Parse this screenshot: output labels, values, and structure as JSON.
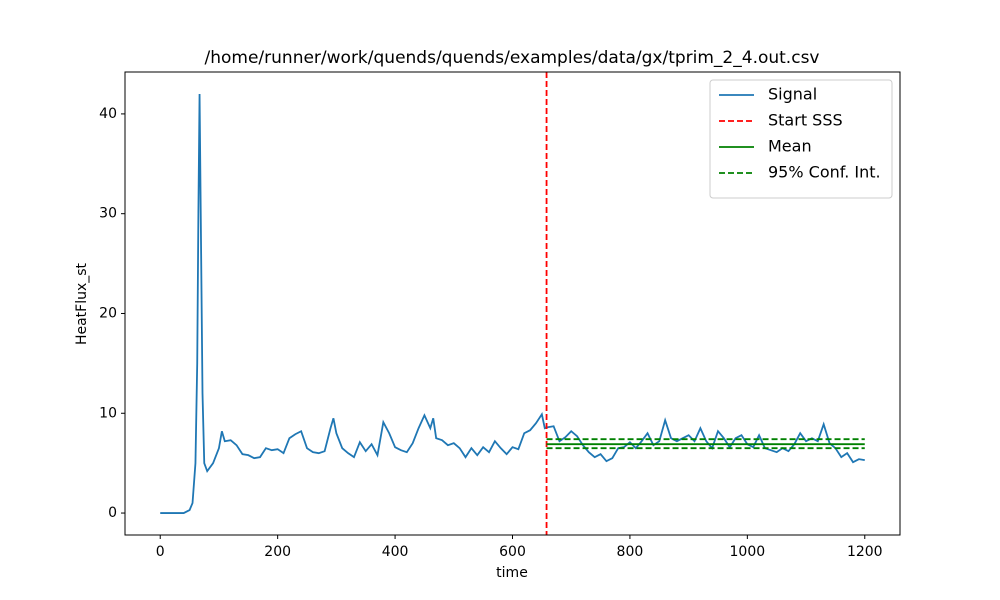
{
  "chart_data": {
    "type": "line",
    "title": "/home/runner/work/quends/quends/examples/data/gx/tprim_2_4.out.csv",
    "x_label": "time",
    "y_label": "HeatFlux_st",
    "xlim": [
      -60,
      1260
    ],
    "ylim": [
      -2.2,
      44.2
    ],
    "xticks": [
      0,
      200,
      400,
      600,
      800,
      1000,
      1200
    ],
    "yticks": [
      0,
      10,
      20,
      30,
      40
    ],
    "legend": "upper right",
    "series": [
      {
        "name": "Signal",
        "color": "#1f77b4",
        "x": [
          0,
          10,
          20,
          30,
          40,
          50,
          55,
          60,
          63,
          65,
          67,
          69,
          72,
          75,
          80,
          90,
          100,
          105,
          110,
          120,
          130,
          140,
          150,
          160,
          170,
          180,
          190,
          200,
          210,
          220,
          230,
          240,
          250,
          260,
          270,
          280,
          290,
          295,
          300,
          310,
          320,
          330,
          340,
          350,
          360,
          370,
          380,
          390,
          400,
          410,
          420,
          430,
          440,
          450,
          460,
          465,
          470,
          480,
          490,
          500,
          510,
          520,
          530,
          540,
          550,
          560,
          570,
          580,
          590,
          600,
          610,
          620,
          630,
          640,
          650,
          655,
          660,
          670,
          680,
          690,
          700,
          710,
          720,
          730,
          740,
          750,
          760,
          770,
          780,
          790,
          800,
          810,
          820,
          830,
          840,
          850,
          860,
          870,
          880,
          890,
          900,
          910,
          920,
          930,
          940,
          950,
          960,
          970,
          980,
          990,
          1000,
          1010,
          1020,
          1030,
          1040,
          1050,
          1060,
          1070,
          1080,
          1090,
          1100,
          1110,
          1120,
          1130,
          1140,
          1150,
          1160,
          1170,
          1180,
          1190,
          1200
        ],
        "values": [
          0,
          0,
          0,
          0,
          0,
          0.3,
          1,
          5,
          15,
          30,
          42,
          30,
          12,
          5,
          4.2,
          5,
          6.5,
          8.2,
          7.2,
          7.3,
          6.8,
          5.9,
          5.8,
          5.5,
          5.6,
          6.5,
          6.3,
          6.4,
          6,
          7.5,
          7.9,
          8.2,
          6.5,
          6.1,
          6,
          6.2,
          8.5,
          9.5,
          8,
          6.5,
          6,
          5.6,
          7.1,
          6.2,
          6.9,
          5.8,
          9.1,
          8,
          6.6,
          6.3,
          6.1,
          7,
          8.5,
          9.8,
          8.5,
          9.5,
          7.5,
          7.3,
          6.8,
          7,
          6.5,
          5.6,
          6.5,
          5.8,
          6.6,
          6.1,
          7.2,
          6.5,
          5.9,
          6.6,
          6.4,
          8,
          8.3,
          9,
          9.9,
          8.5,
          8.6,
          8.7,
          7.2,
          7.6,
          8.2,
          7.7,
          6.8,
          6.1,
          5.6,
          5.9,
          5.2,
          5.5,
          6.5,
          6.6,
          7.1,
          6.5,
          7.2,
          8,
          6.8,
          7.2,
          9.3,
          7.5,
          7.2,
          7.5,
          7.8,
          7.2,
          8.5,
          7.2,
          6.5,
          8.2,
          7.5,
          6.6,
          7.5,
          7.8,
          6.9,
          6.6,
          7.8,
          6.5,
          6.3,
          6.1,
          6.5,
          6.2,
          6.9,
          8,
          7.2,
          7.5,
          7.2,
          8.9,
          7,
          6.5,
          5.6,
          6,
          5.1,
          5.4,
          5.3
        ]
      }
    ],
    "vline": {
      "name": "Start SSS",
      "color": "#ff0000",
      "x": 658
    },
    "mean": {
      "name": "Mean",
      "color": "#008000",
      "x": [
        658,
        1200
      ],
      "values": [
        6.9,
        6.9
      ]
    },
    "interval": {
      "name": "95% Conf. Int.",
      "color": "#008000",
      "x": [
        658,
        1200
      ],
      "lower": [
        6.5,
        6.5
      ],
      "upper": [
        7.4,
        7.4
      ]
    }
  }
}
